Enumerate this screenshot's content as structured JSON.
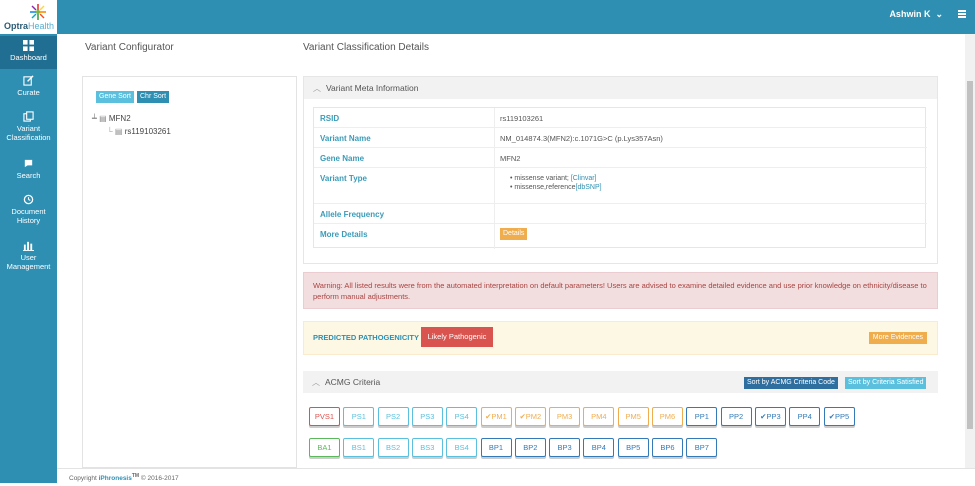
{
  "app": {
    "logo_main": "Optra",
    "logo_sub": "Health",
    "user": "Ashwin K"
  },
  "sidebar": [
    {
      "label1": "Dashboard",
      "label2": "",
      "icon": "dashboard-icon",
      "active": true
    },
    {
      "label1": "Curate",
      "label2": "",
      "icon": "edit-icon"
    },
    {
      "label1": "Variant",
      "label2": "Classification",
      "icon": "copy-icon"
    },
    {
      "label1": "Search",
      "label2": "",
      "icon": "search-icon"
    },
    {
      "label1": "Document",
      "label2": "History",
      "icon": "history-icon"
    },
    {
      "label1": "User",
      "label2": "Management",
      "icon": "bar-chart-icon"
    }
  ],
  "left": {
    "title": "Variant Configurator",
    "gene_sort": "Gene Sort",
    "chr_sort": "Chr Sort",
    "tree_gene": "MFN2",
    "tree_variant": "rs119103261"
  },
  "right": {
    "title": "Variant Classification Details"
  },
  "meta": {
    "title": "Variant Meta Information",
    "rsid_k": "RSID",
    "rsid_v": "rs119103261",
    "name_k": "Variant Name",
    "name_v": "NM_014874.3(MFN2):c.1071G>C (p.Lys357Asn)",
    "gene_k": "Gene Name",
    "gene_v": "MFN2",
    "type_k": "Variant Type",
    "type_v1": "missense variant; ",
    "type_v1_link": "[Clinvar]",
    "type_v2": "missense,reference",
    "type_v2_link": "[dbSNP]",
    "freq_k": "Allele Frequency",
    "more_k": "More Details",
    "details_btn": "Details"
  },
  "warning": "Warning: All listed results were from the automated interpretation on default parameters! Users are advised to examine detailed evidence and use prior knowledge on ethnicity/disease to perform manual adjustments.",
  "predicted": {
    "label": "PREDICTED PATHOGENICITY :",
    "value": "Likely Pathogenic",
    "more": "More Evidences"
  },
  "acmg": {
    "title": "ACMG Criteria",
    "sort_code": "Sort by ACMG Criteria Code",
    "sort_sat": "Sort by Criteria Satisfied",
    "row1": [
      {
        "t": "PVS1",
        "c": "#d9534f"
      },
      {
        "t": "PS1",
        "c": "#5bc0de"
      },
      {
        "t": "PS2",
        "c": "#5bc0de"
      },
      {
        "t": "PS3",
        "c": "#5bc0de"
      },
      {
        "t": "PS4",
        "c": "#5bc0de"
      },
      {
        "t": "✔PM1",
        "c": "#f0ad4e"
      },
      {
        "t": "✔PM2",
        "c": "#f0ad4e"
      },
      {
        "t": "PM3",
        "c": "#f0ad4e"
      },
      {
        "t": "PM4",
        "c": "#f0ad4e"
      },
      {
        "t": "PM5",
        "c": "#f0ad4e"
      },
      {
        "t": "PM6",
        "c": "#f0ad4e"
      },
      {
        "t": "PP1",
        "c": "#337ab7"
      },
      {
        "t": "PP2",
        "c": "#337ab7"
      },
      {
        "t": "✔PP3",
        "c": "#337ab7"
      },
      {
        "t": "PP4",
        "c": "#337ab7"
      },
      {
        "t": "✔PP5",
        "c": "#337ab7"
      }
    ],
    "row2": [
      {
        "t": "BA1",
        "c": "#5cb85c"
      },
      {
        "t": "BS1",
        "c": "#5bc0de"
      },
      {
        "t": "BS2",
        "c": "#5bc0de"
      },
      {
        "t": "BS3",
        "c": "#5bc0de"
      },
      {
        "t": "BS4",
        "c": "#5bc0de"
      },
      {
        "t": "BP1",
        "c": "#337ab7"
      },
      {
        "t": "BP2",
        "c": "#337ab7"
      },
      {
        "t": "BP3",
        "c": "#337ab7"
      },
      {
        "t": "BP4",
        "c": "#337ab7"
      },
      {
        "t": "BP5",
        "c": "#337ab7"
      },
      {
        "t": "BP6",
        "c": "#337ab7"
      },
      {
        "t": "BP7",
        "c": "#337ab7"
      }
    ]
  },
  "footer": {
    "prefix": "Copyright ",
    "brand": "iPhronesis",
    "tm": "TM",
    "suffix": " © 2016-2017"
  }
}
